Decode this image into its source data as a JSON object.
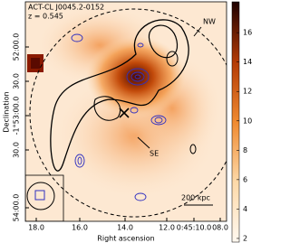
{
  "title": "ACT-CL J0045.2-0152",
  "redshift": "z = 0.545",
  "annotations": {
    "nw": "NW",
    "se": "SE",
    "scale": "200 kpc"
  },
  "x_axis": {
    "label": "Right ascension",
    "ticks": [
      "18.0",
      "16.0",
      "14.0",
      "12.0",
      "0:45:10.0",
      "08.0"
    ]
  },
  "y_axis": {
    "label": "Declination",
    "ticks": [
      "52:00.0",
      "30.0",
      "-1°53:00.0",
      "30.0",
      "54:00.0"
    ]
  },
  "colorbar": {
    "range": [
      1.75,
      18.1
    ],
    "ticks": [
      2,
      4,
      6,
      8,
      10,
      12,
      14,
      16
    ]
  }
}
